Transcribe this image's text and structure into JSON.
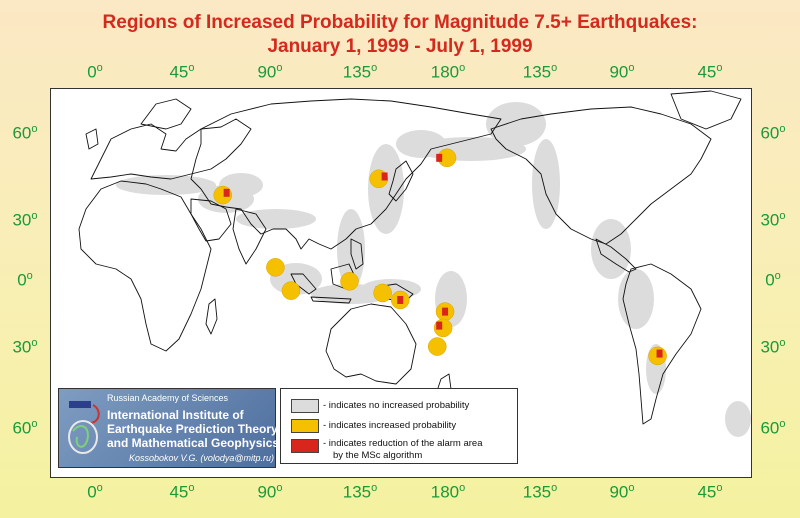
{
  "title": {
    "line1": "Regions of Increased Probability for Magnitude 7.5+ Earthquakes:",
    "line2": "January 1, 1999 - July 1, 1999"
  },
  "axes": {
    "longitude_ticks": [
      "0",
      "45",
      "90",
      "135",
      "180",
      "135",
      "90",
      "45"
    ],
    "latitude_ticks": [
      "60",
      "30",
      "0",
      "30",
      "60"
    ],
    "degree_symbol": "o"
  },
  "logo": {
    "organization": "Russian Academy of Sciences",
    "institute_line1": "International Institute of",
    "institute_line2": "Earthquake Prediction Theory",
    "institute_line3": "and Mathematical Geophysics",
    "author": "Kossobokov V.G. (volodya@mitp.ru)"
  },
  "legend": {
    "items": [
      {
        "label": "- indicates no increased probability",
        "color": "#dcdcdc"
      },
      {
        "label": "- indicates increased probability",
        "color": "#f5c000"
      },
      {
        "label": "- indicates reduction of the alarm area",
        "label2": "by the MSc algorithm",
        "color": "#d8261c"
      }
    ]
  },
  "colors": {
    "title": "#d42a1e",
    "ticks": "#1a9a3a",
    "no_increase": "#dcdcdc",
    "increase": "#f5c000",
    "reduced": "#d8261c"
  },
  "regions": {
    "increased": [
      {
        "lon": 65,
        "lat": 36
      },
      {
        "lon": 145,
        "lat": 43
      },
      {
        "lon": 180,
        "lat": 52
      },
      {
        "lon": 92,
        "lat": 5
      },
      {
        "lon": 100,
        "lat": -5
      },
      {
        "lon": 130,
        "lat": -1
      },
      {
        "lon": 147,
        "lat": -6
      },
      {
        "lon": 156,
        "lat": -9
      },
      {
        "lon": 179,
        "lat": -14
      },
      {
        "lon": 178,
        "lat": -21
      },
      {
        "lon": 175,
        "lat": -29
      },
      {
        "lon": -72,
        "lat": -33
      }
    ],
    "reduced": [
      {
        "lon": 67,
        "lat": 37
      },
      {
        "lon": 148,
        "lat": 44
      },
      {
        "lon": 176,
        "lat": 52
      },
      {
        "lon": 156,
        "lat": -9
      },
      {
        "lon": 179,
        "lat": -14
      },
      {
        "lon": 176,
        "lat": -20
      },
      {
        "lon": -71,
        "lat": -32
      }
    ]
  }
}
